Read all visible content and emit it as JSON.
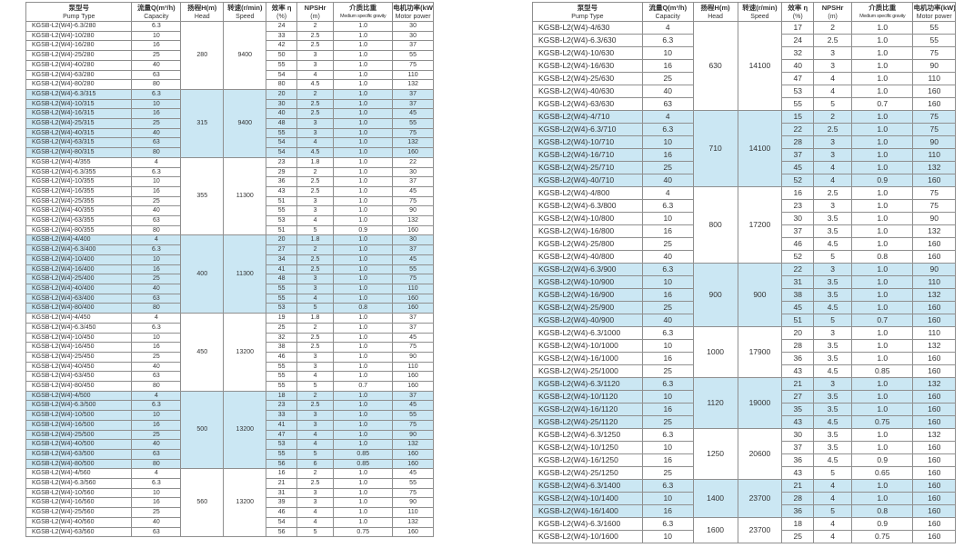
{
  "columns": [
    {
      "key": "pump-type",
      "zh": "泵型号",
      "en": "Pump Type"
    },
    {
      "key": "capacity",
      "zh": "流量Q(m³/h)",
      "en": "Capacity"
    },
    {
      "key": "head",
      "zh": "扬程H(m)",
      "en": "Head"
    },
    {
      "key": "speed",
      "zh": "转速(r/min)",
      "en": "Speed"
    },
    {
      "key": "efficiency",
      "zh": "效率 η",
      "en": "(%)"
    },
    {
      "key": "npshr",
      "zh": "NPSHr",
      "en": "(m)"
    },
    {
      "key": "gravity",
      "zh": "介质比重",
      "en": "Medium specific gravity"
    },
    {
      "key": "motor-power",
      "zh": "电机功率(kW)",
      "en": "Motor power"
    }
  ],
  "colors": {
    "shaded_row": "#cbe7f3",
    "border": "#8f8f8f",
    "text": "#333333"
  },
  "tables": [
    {
      "name": "left-pump-table",
      "groups": [
        {
          "head": "280",
          "speed": "9400",
          "shaded": false,
          "rows": [
            [
              "KGSB-L2(W4)-6.3/280",
              "6.3",
              "24",
              "2",
              "1.0",
              "30"
            ],
            [
              "KGSB-L2(W4)-10/280",
              "10",
              "33",
              "2.5",
              "1.0",
              "30"
            ],
            [
              "KGSB-L2(W4)-16/280",
              "16",
              "42",
              "2.5",
              "1.0",
              "37"
            ],
            [
              "KGSB-L2(W4)-25/280",
              "25",
              "50",
              "3",
              "1.0",
              "55"
            ],
            [
              "KGSB-L2(W4)-40/280",
              "40",
              "55",
              "3",
              "1.0",
              "75"
            ],
            [
              "KGSB-L2(W4)-63/280",
              "63",
              "54",
              "4",
              "1.0",
              "110"
            ],
            [
              "KGSB-L2(W4)-80/280",
              "80",
              "80",
              "4.5",
              "1.0",
              "132"
            ]
          ]
        },
        {
          "head": "315",
          "speed": "9400",
          "shaded": true,
          "rows": [
            [
              "KGSB-L2(W4)-6.3/315",
              "6.3",
              "20",
              "2",
              "1.0",
              "37"
            ],
            [
              "KGSB-L2(W4)-10/315",
              "10",
              "30",
              "2.5",
              "1.0",
              "37"
            ],
            [
              "KGSB-L2(W4)-16/315",
              "16",
              "40",
              "2.5",
              "1.0",
              "45"
            ],
            [
              "KGSB-L2(W4)-25/315",
              "25",
              "48",
              "3",
              "1.0",
              "55"
            ],
            [
              "KGSB-L2(W4)-40/315",
              "40",
              "55",
              "3",
              "1.0",
              "75"
            ],
            [
              "KGSB-L2(W4)-63/315",
              "63",
              "54",
              "4",
              "1.0",
              "132"
            ],
            [
              "KGSB-L2(W4)-80/315",
              "80",
              "54",
              "4.5",
              "1.0",
              "160"
            ]
          ]
        },
        {
          "head": "355",
          "speed": "11300",
          "shaded": false,
          "rows": [
            [
              "KGSB-L2(W4)-4/355",
              "4",
              "23",
              "1.8",
              "1.0",
              "22"
            ],
            [
              "KGSB-L2(W4)-6.3/355",
              "6.3",
              "29",
              "2",
              "1.0",
              "30"
            ],
            [
              "KGSB-L2(W4)-10/355",
              "10",
              "36",
              "2.5",
              "1.0",
              "37"
            ],
            [
              "KGSB-L2(W4)-16/355",
              "16",
              "43",
              "2.5",
              "1.0",
              "45"
            ],
            [
              "KGSB-L2(W4)-25/355",
              "25",
              "51",
              "3",
              "1.0",
              "75"
            ],
            [
              "KGSB-L2(W4)-40/355",
              "40",
              "55",
              "3",
              "1.0",
              "90"
            ],
            [
              "KGSB-L2(W4)-63/355",
              "63",
              "53",
              "4",
              "1.0",
              "132"
            ],
            [
              "KGSB-L2(W4)-80/355",
              "80",
              "51",
              "5",
              "0.9",
              "160"
            ]
          ]
        },
        {
          "head": "400",
          "speed": "11300",
          "shaded": true,
          "rows": [
            [
              "KGSB-L2(W4)-4/400",
              "4",
              "20",
              "1.8",
              "1.0",
              "30"
            ],
            [
              "KGSB-L2(W4)-6.3/400",
              "6.3",
              "27",
              "2",
              "1.0",
              "37"
            ],
            [
              "KGSB-L2(W4)-10/400",
              "10",
              "34",
              "2.5",
              "1.0",
              "45"
            ],
            [
              "KGSB-L2(W4)-16/400",
              "16",
              "41",
              "2.5",
              "1.0",
              "55"
            ],
            [
              "KGSB-L2(W4)-25/400",
              "25",
              "48",
              "3",
              "1.0",
              "75"
            ],
            [
              "KGSB-L2(W4)-40/400",
              "40",
              "55",
              "3",
              "1.0",
              "110"
            ],
            [
              "KGSB-L2(W4)-63/400",
              "63",
              "55",
              "4",
              "1.0",
              "160"
            ],
            [
              "KGSB-L2(W4)-80/400",
              "80",
              "53",
              "5",
              "0.8",
              "160"
            ]
          ]
        },
        {
          "head": "450",
          "speed": "13200",
          "shaded": false,
          "rows": [
            [
              "KGSB-L2(W4)-4/450",
              "4",
              "19",
              "1.8",
              "1.0",
              "37"
            ],
            [
              "KGSB-L2(W4)-6.3/450",
              "6.3",
              "25",
              "2",
              "1.0",
              "37"
            ],
            [
              "KGSB-L2(W4)-10/450",
              "10",
              "32",
              "2.5",
              "1.0",
              "45"
            ],
            [
              "KGSB-L2(W4)-16/450",
              "16",
              "38",
              "2.5",
              "1.0",
              "75"
            ],
            [
              "KGSB-L2(W4)-25/450",
              "25",
              "46",
              "3",
              "1.0",
              "90"
            ],
            [
              "KGSB-L2(W4)-40/450",
              "40",
              "55",
              "3",
              "1.0",
              "110"
            ],
            [
              "KGSB-L2(W4)-63/450",
              "63",
              "55",
              "4",
              "1.0",
              "160"
            ],
            [
              "KGSB-L2(W4)-80/450",
              "80",
              "55",
              "5",
              "0.7",
              "160"
            ]
          ]
        },
        {
          "head": "500",
          "speed": "13200",
          "shaded": true,
          "rows": [
            [
              "KGSB-L2(W4)-4/500",
              "4",
              "18",
              "2",
              "1.0",
              "37"
            ],
            [
              "KGSB-L2(W4)-6.3/500",
              "6.3",
              "23",
              "2.5",
              "1.0",
              "45"
            ],
            [
              "KGSB-L2(W4)-10/500",
              "10",
              "33",
              "3",
              "1.0",
              "55"
            ],
            [
              "KGSB-L2(W4)-16/500",
              "16",
              "41",
              "3",
              "1.0",
              "75"
            ],
            [
              "KGSB-L2(W4)-25/500",
              "25",
              "47",
              "4",
              "1.0",
              "90"
            ],
            [
              "KGSB-L2(W4)-40/500",
              "40",
              "53",
              "4",
              "1.0",
              "132"
            ],
            [
              "KGSB-L2(W4)-63/500",
              "63",
              "55",
              "5",
              "0.85",
              "160"
            ],
            [
              "KGSB-L2(W4)-80/500",
              "80",
              "56",
              "6",
              "0.85",
              "160"
            ]
          ]
        },
        {
          "head": "560",
          "speed": "13200",
          "shaded": false,
          "rows": [
            [
              "KGSB-L2(W4)-4/560",
              "4",
              "16",
              "2",
              "1.0",
              "45"
            ],
            [
              "KGSB-L2(W4)-6.3/560",
              "6.3",
              "21",
              "2.5",
              "1.0",
              "55"
            ],
            [
              "KGSB-L2(W4)-10/560",
              "10",
              "31",
              "3",
              "1.0",
              "75"
            ],
            [
              "KGSB-L2(W4)-16/560",
              "16",
              "39",
              "3",
              "1.0",
              "90"
            ],
            [
              "KGSB-L2(W4)-25/560",
              "25",
              "46",
              "4",
              "1.0",
              "110"
            ],
            [
              "KGSB-L2(W4)-40/560",
              "40",
              "54",
              "4",
              "1.0",
              "132"
            ],
            [
              "KGSB-L2(W4)-63/560",
              "63",
              "56",
              "5",
              "0.75",
              "160"
            ]
          ]
        }
      ]
    },
    {
      "name": "right-pump-table",
      "groups": [
        {
          "head": "630",
          "speed": "14100",
          "shaded": false,
          "rows": [
            [
              "KGSB-L2(W4)-4/630",
              "4",
              "17",
              "2",
              "1.0",
              "55"
            ],
            [
              "KGSB-L2(W4)-6.3/630",
              "6.3",
              "24",
              "2.5",
              "1.0",
              "55"
            ],
            [
              "KGSB-L2(W4)-10/630",
              "10",
              "32",
              "3",
              "1.0",
              "75"
            ],
            [
              "KGSB-L2(W4)-16/630",
              "16",
              "40",
              "3",
              "1.0",
              "90"
            ],
            [
              "KGSB-L2(W4)-25/630",
              "25",
              "47",
              "4",
              "1.0",
              "110"
            ],
            [
              "KGSB-L2(W4)-40/630",
              "40",
              "53",
              "4",
              "1.0",
              "160"
            ],
            [
              "KGSB-L2(W4)-63/630",
              "63",
              "55",
              "5",
              "0.7",
              "160"
            ]
          ]
        },
        {
          "head": "710",
          "speed": "14100",
          "shaded": true,
          "rows": [
            [
              "KGSB-L2(W4)-4/710",
              "4",
              "15",
              "2",
              "1.0",
              "75"
            ],
            [
              "KGSB-L2(W4)-6.3/710",
              "6.3",
              "22",
              "2.5",
              "1.0",
              "75"
            ],
            [
              "KGSB-L2(W4)-10/710",
              "10",
              "28",
              "3",
              "1.0",
              "90"
            ],
            [
              "KGSB-L2(W4)-16/710",
              "16",
              "37",
              "3",
              "1.0",
              "110"
            ],
            [
              "KGSB-L2(W4)-25/710",
              "25",
              "45",
              "4",
              "1.0",
              "132"
            ],
            [
              "KGSB-L2(W4)-40/710",
              "40",
              "52",
              "4",
              "0.9",
              "160"
            ]
          ]
        },
        {
          "head": "800",
          "speed": "17200",
          "shaded": false,
          "rows": [
            [
              "KGSB-L2(W4)-4/800",
              "4",
              "16",
              "2.5",
              "1.0",
              "75"
            ],
            [
              "KGSB-L2(W4)-6.3/800",
              "6.3",
              "23",
              "3",
              "1.0",
              "75"
            ],
            [
              "KGSB-L2(W4)-10/800",
              "10",
              "30",
              "3.5",
              "1.0",
              "90"
            ],
            [
              "KGSB-L2(W4)-16/800",
              "16",
              "37",
              "3.5",
              "1.0",
              "132"
            ],
            [
              "KGSB-L2(W4)-25/800",
              "25",
              "46",
              "4.5",
              "1.0",
              "160"
            ],
            [
              "KGSB-L2(W4)-40/800",
              "40",
              "52",
              "5",
              "0.8",
              "160"
            ]
          ]
        },
        {
          "head": "900",
          "speed": "900",
          "shaded": true,
          "rows": [
            [
              "KGSB-L2(W4)-6.3/900",
              "6.3",
              "22",
              "3",
              "1.0",
              "90"
            ],
            [
              "KGSB-L2(W4)-10/900",
              "10",
              "31",
              "3.5",
              "1.0",
              "110"
            ],
            [
              "KGSB-L2(W4)-16/900",
              "16",
              "38",
              "3.5",
              "1.0",
              "132"
            ],
            [
              "KGSB-L2(W4)-25/900",
              "25",
              "45",
              "4.5",
              "1.0",
              "160"
            ],
            [
              "KGSB-L2(W4)-40/900",
              "40",
              "51",
              "5",
              "0.7",
              "160"
            ]
          ]
        },
        {
          "head": "1000",
          "speed": "17900",
          "shaded": false,
          "rows": [
            [
              "KGSB-L2(W4)-6.3/1000",
              "6.3",
              "20",
              "3",
              "1.0",
              "110"
            ],
            [
              "KGSB-L2(W4)-10/1000",
              "10",
              "28",
              "3.5",
              "1.0",
              "132"
            ],
            [
              "KGSB-L2(W4)-16/1000",
              "16",
              "36",
              "3.5",
              "1.0",
              "160"
            ],
            [
              "KGSB-L2(W4)-25/1000",
              "25",
              "43",
              "4.5",
              "0.85",
              "160"
            ]
          ]
        },
        {
          "head": "1120",
          "speed": "19000",
          "shaded": true,
          "rows": [
            [
              "KGSB-L2(W4)-6.3/1120",
              "6.3",
              "21",
              "3",
              "1.0",
              "132"
            ],
            [
              "KGSB-L2(W4)-10/1120",
              "10",
              "27",
              "3.5",
              "1.0",
              "160"
            ],
            [
              "KGSB-L2(W4)-16/1120",
              "16",
              "35",
              "3.5",
              "1.0",
              "160"
            ],
            [
              "KGSB-L2(W4)-25/1120",
              "25",
              "43",
              "4.5",
              "0.75",
              "160"
            ]
          ]
        },
        {
          "head": "1250",
          "speed": "20600",
          "shaded": false,
          "rows": [
            [
              "KGSB-L2(W4)-6.3/1250",
              "6.3",
              "30",
              "3.5",
              "1.0",
              "132"
            ],
            [
              "KGSB-L2(W4)-10/1250",
              "10",
              "37",
              "3.5",
              "1.0",
              "160"
            ],
            [
              "KGSB-L2(W4)-16/1250",
              "16",
              "36",
              "4.5",
              "0.9",
              "160"
            ],
            [
              "KGSB-L2(W4)-25/1250",
              "25",
              "43",
              "5",
              "0.65",
              "160"
            ]
          ]
        },
        {
          "head": "1400",
          "speed": "23700",
          "shaded": true,
          "rows": [
            [
              "KGSB-L2(W4)-6.3/1400",
              "6.3",
              "21",
              "4",
              "1.0",
              "160"
            ],
            [
              "KGSB-L2(W4)-10/1400",
              "10",
              "28",
              "4",
              "1.0",
              "160"
            ],
            [
              "KGSB-L2(W4)-16/1400",
              "16",
              "36",
              "5",
              "0.8",
              "160"
            ]
          ]
        },
        {
          "head": "1600",
          "speed": "23700",
          "shaded": false,
          "rows": [
            [
              "KGSB-L2(W4)-6.3/1600",
              "6.3",
              "18",
              "4",
              "0.9",
              "160"
            ],
            [
              "KGSB-L2(W4)-10/1600",
              "10",
              "25",
              "4",
              "0.75",
              "160"
            ]
          ]
        }
      ]
    }
  ]
}
